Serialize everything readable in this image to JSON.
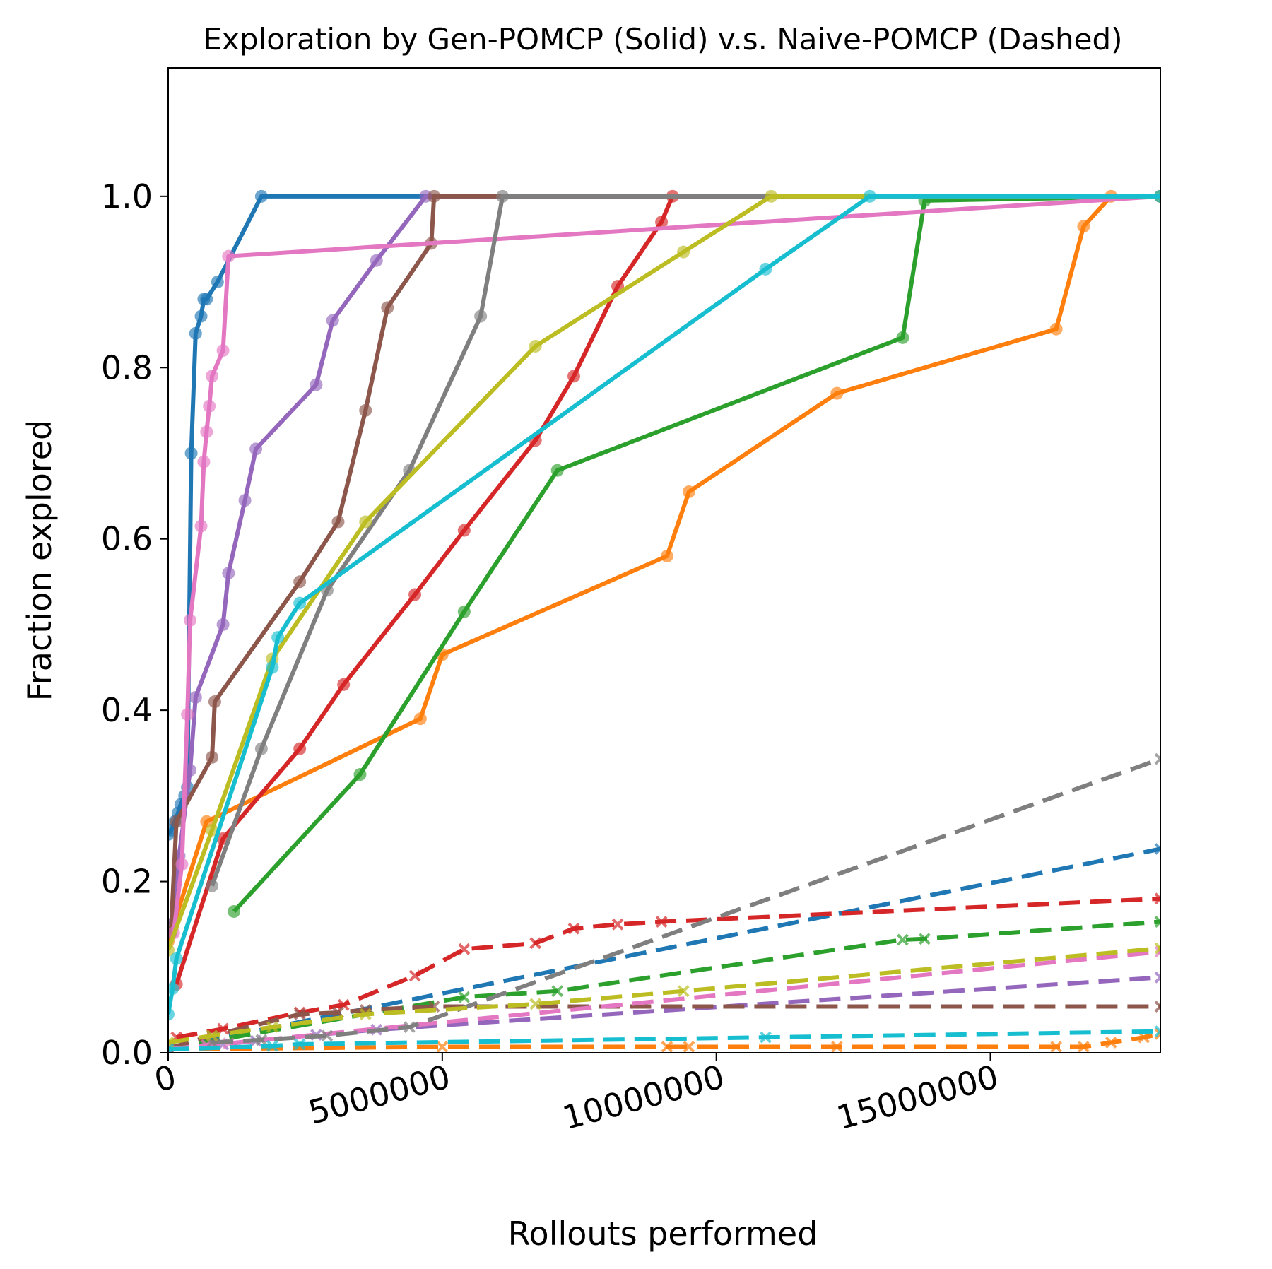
{
  "chart_data": {
    "type": "line",
    "title": "Exploration by Gen-POMCP (Solid) v.s. Naive-POMCP (Dashed)",
    "xlabel": "Rollouts performed",
    "ylabel": "Fraction explored",
    "xlim": [
      0,
      18100000
    ],
    "ylim": [
      0,
      1.15
    ],
    "x_ticks": [
      0,
      5000000,
      10000000,
      15000000
    ],
    "x_tick_labels": [
      "0",
      "5000000",
      "10000000",
      "15000000"
    ],
    "y_ticks": [
      0.0,
      0.2,
      0.4,
      0.6,
      0.8,
      1.0
    ],
    "y_tick_labels": [
      "0.0",
      "0.2",
      "0.4",
      "0.6",
      "0.8",
      "1.0"
    ],
    "grid": false,
    "legend": "none",
    "series": [
      {
        "style": "solid",
        "color": "#1f77b4",
        "marker": "circle",
        "x": [
          0,
          60000,
          120000,
          180000,
          230000,
          300000,
          350000,
          420000,
          500000,
          600000,
          650000,
          700000,
          900000,
          1700000,
          18100000
        ],
        "y": [
          0.255,
          0.26,
          0.27,
          0.28,
          0.29,
          0.3,
          0.31,
          0.7,
          0.84,
          0.86,
          0.88,
          0.88,
          0.9,
          1.0,
          1.0
        ]
      },
      {
        "style": "solid",
        "color": "#ff7f0e",
        "marker": "circle",
        "x": [
          0,
          700000,
          4600000,
          5000000,
          9100000,
          9500000,
          12200000,
          16200000,
          16700000,
          17200000,
          18100000
        ],
        "y": [
          0.13,
          0.27,
          0.39,
          0.465,
          0.58,
          0.655,
          0.77,
          0.845,
          0.965,
          1.0,
          1.0
        ]
      },
      {
        "style": "solid",
        "color": "#2ca02c",
        "marker": "circle",
        "x": [
          1200000,
          3500000,
          5400000,
          7100000,
          13400000,
          13800000,
          18100000
        ],
        "y": [
          0.165,
          0.325,
          0.515,
          0.68,
          0.835,
          0.995,
          1.0
        ]
      },
      {
        "style": "solid",
        "color": "#d62728",
        "marker": "circle",
        "x": [
          150000,
          1000000,
          2400000,
          3200000,
          4500000,
          5400000,
          6700000,
          7400000,
          8200000,
          9000000,
          9200000,
          18100000
        ],
        "y": [
          0.08,
          0.25,
          0.355,
          0.43,
          0.535,
          0.61,
          0.715,
          0.79,
          0.895,
          0.97,
          1.0,
          1.0
        ]
      },
      {
        "style": "solid",
        "color": "#9467bd",
        "marker": "circle",
        "x": [
          50000,
          200000,
          400000,
          500000,
          1000000,
          1100000,
          1400000,
          1600000,
          2700000,
          3000000,
          3800000,
          4700000,
          18100000
        ],
        "y": [
          0.15,
          0.23,
          0.33,
          0.415,
          0.5,
          0.56,
          0.645,
          0.705,
          0.78,
          0.855,
          0.925,
          1.0,
          1.0
        ]
      },
      {
        "style": "solid",
        "color": "#8c564b",
        "marker": "circle",
        "x": [
          50000,
          150000,
          800000,
          850000,
          2400000,
          3100000,
          3600000,
          4000000,
          4800000,
          4850000,
          18100000
        ],
        "y": [
          0.14,
          0.27,
          0.345,
          0.41,
          0.55,
          0.62,
          0.75,
          0.87,
          0.945,
          1.0,
          1.0
        ]
      },
      {
        "style": "solid",
        "color": "#e377c2",
        "marker": "circle",
        "x": [
          100000,
          250000,
          350000,
          400000,
          600000,
          650000,
          700000,
          750000,
          800000,
          1000000,
          1100000,
          18100000
        ],
        "y": [
          0.14,
          0.22,
          0.395,
          0.505,
          0.615,
          0.69,
          0.725,
          0.755,
          0.79,
          0.82,
          0.93,
          1.0
        ]
      },
      {
        "style": "solid",
        "color": "#7f7f7f",
        "marker": "circle",
        "x": [
          800000,
          1700000,
          2900000,
          4400000,
          5700000,
          6100000,
          18100000
        ],
        "y": [
          0.195,
          0.355,
          0.54,
          0.68,
          0.86,
          1.0,
          1.0
        ]
      },
      {
        "style": "solid",
        "color": "#bcbd22",
        "marker": "circle",
        "x": [
          0,
          800000,
          1900000,
          3600000,
          6700000,
          9400000,
          11000000,
          18100000
        ],
        "y": [
          0.12,
          0.26,
          0.46,
          0.62,
          0.825,
          0.935,
          1.0,
          1.0
        ]
      },
      {
        "style": "solid",
        "color": "#17becf",
        "marker": "circle",
        "x": [
          0,
          80000,
          150000,
          1900000,
          2000000,
          2400000,
          10900000,
          12800000,
          18100000
        ],
        "y": [
          0.045,
          0.075,
          0.11,
          0.45,
          0.485,
          0.525,
          0.915,
          1.0,
          1.0
        ]
      },
      {
        "style": "dashed",
        "color": "#1f77b4",
        "marker": "x",
        "x": [
          0,
          18100000
        ],
        "y": [
          0.005,
          0.238
        ]
      },
      {
        "style": "dashed",
        "color": "#ff7f0e",
        "marker": "x",
        "x": [
          0,
          5000000,
          9100000,
          9500000,
          12200000,
          16200000,
          16700000,
          17200000,
          17800000,
          18100000
        ],
        "y": [
          0.004,
          0.007,
          0.007,
          0.007,
          0.007,
          0.007,
          0.007,
          0.012,
          0.018,
          0.022
        ]
      },
      {
        "style": "dashed",
        "color": "#2ca02c",
        "marker": "x",
        "x": [
          0,
          5400000,
          7100000,
          13400000,
          13800000,
          18100000
        ],
        "y": [
          0.005,
          0.065,
          0.072,
          0.132,
          0.133,
          0.153
        ]
      },
      {
        "style": "dashed",
        "color": "#d62728",
        "marker": "x",
        "x": [
          150000,
          1000000,
          2400000,
          3200000,
          4500000,
          5400000,
          6700000,
          7400000,
          8200000,
          9000000,
          18100000
        ],
        "y": [
          0.018,
          0.028,
          0.047,
          0.056,
          0.09,
          0.121,
          0.128,
          0.145,
          0.15,
          0.153,
          0.18
        ]
      },
      {
        "style": "dashed",
        "color": "#9467bd",
        "marker": "x",
        "x": [
          0,
          1000000,
          1600000,
          2700000,
          3800000,
          18100000
        ],
        "y": [
          0.005,
          0.01,
          0.014,
          0.021,
          0.027,
          0.088
        ]
      },
      {
        "style": "dashed",
        "color": "#8c564b",
        "marker": "x",
        "x": [
          0,
          800000,
          2400000,
          3100000,
          3600000,
          4850000,
          18100000
        ],
        "y": [
          0.005,
          0.02,
          0.045,
          0.047,
          0.05,
          0.054,
          0.054
        ]
      },
      {
        "style": "dashed",
        "color": "#e377c2",
        "marker": "x",
        "x": [
          0,
          700000,
          1100000,
          18100000
        ],
        "y": [
          0.004,
          0.009,
          0.011,
          0.118
        ]
      },
      {
        "style": "dashed",
        "color": "#7f7f7f",
        "marker": "x",
        "x": [
          800000,
          1700000,
          2900000,
          4400000,
          18100000
        ],
        "y": [
          0.012,
          0.015,
          0.02,
          0.03,
          0.343
        ]
      },
      {
        "style": "dashed",
        "color": "#bcbd22",
        "marker": "x",
        "x": [
          0,
          800000,
          1900000,
          3600000,
          6700000,
          9400000,
          18100000
        ],
        "y": [
          0.012,
          0.02,
          0.03,
          0.045,
          0.057,
          0.072,
          0.122
        ]
      },
      {
        "style": "dashed",
        "color": "#17becf",
        "marker": "x",
        "x": [
          0,
          1900000,
          2400000,
          10900000,
          18100000
        ],
        "y": [
          0.004,
          0.008,
          0.01,
          0.018,
          0.025
        ]
      }
    ]
  }
}
